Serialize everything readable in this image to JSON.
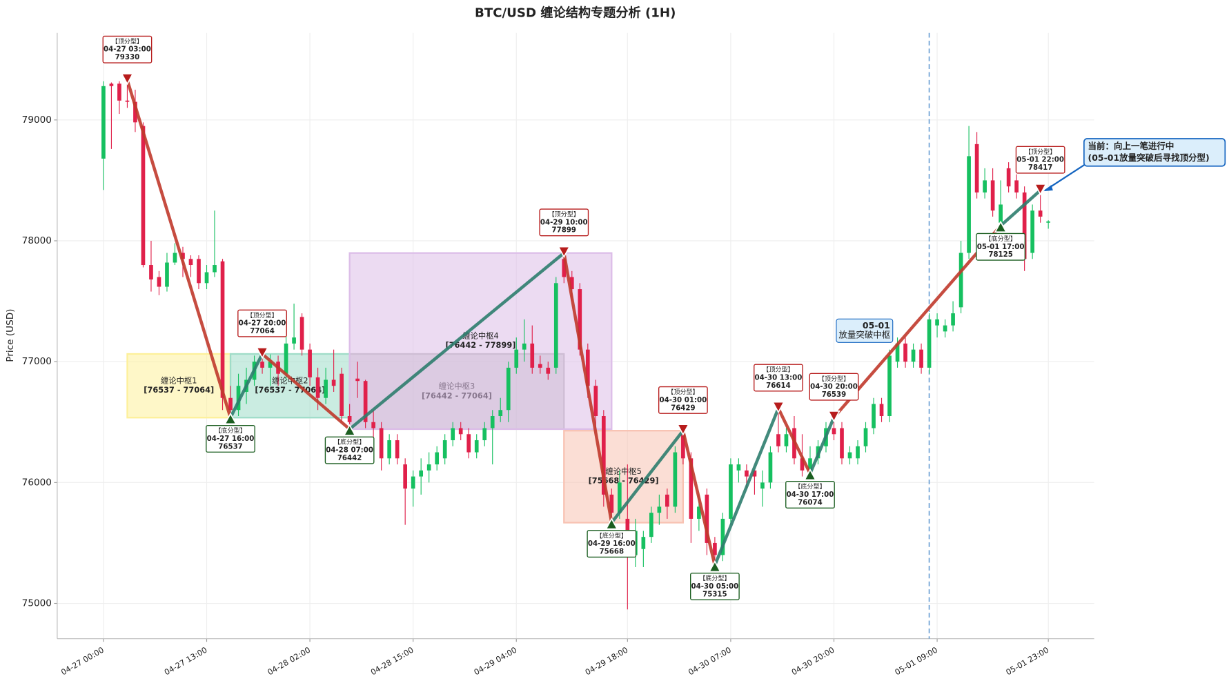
{
  "chart_data": {
    "type": "candlestick",
    "title": "BTC/USD 缠论结构专题分析 (1H)",
    "ylabel": "Price (USD)",
    "ylim": [
      74708,
      79720
    ],
    "yticks": [
      75000,
      76000,
      77000,
      78000,
      79000
    ],
    "grid": true,
    "up_color": "#16c060",
    "down_color": "#e0204a",
    "x": [
      "04-27 00:00",
      "04-27 01:00",
      "04-27 02:00",
      "04-27 03:00",
      "04-27 04:00",
      "04-27 05:00",
      "04-27 06:00",
      "04-27 07:00",
      "04-27 08:00",
      "04-27 09:00",
      "04-27 10:00",
      "04-27 11:00",
      "04-27 12:00",
      "04-27 13:00",
      "04-27 14:00",
      "04-27 15:00",
      "04-27 16:00",
      "04-27 17:00",
      "04-27 18:00",
      "04-27 19:00",
      "04-27 20:00",
      "04-27 21:00",
      "04-27 22:00",
      "04-27 23:00",
      "04-28 00:00",
      "04-28 01:00",
      "04-28 02:00",
      "04-28 03:00",
      "04-28 04:00",
      "04-28 05:00",
      "04-28 06:00",
      "04-28 07:00",
      "04-28 08:00",
      "04-28 09:00",
      "04-28 10:00",
      "04-28 11:00",
      "04-28 12:00",
      "04-28 13:00",
      "04-28 14:00",
      "04-28 15:00",
      "04-28 16:00",
      "04-28 17:00",
      "04-28 18:00",
      "04-28 19:00",
      "04-28 20:00",
      "04-28 21:00",
      "04-28 22:00",
      "04-28 23:00",
      "04-29 00:00",
      "04-29 01:00",
      "04-29 02:00",
      "04-29 03:00",
      "04-29 04:00",
      "04-29 05:00",
      "04-29 06:00",
      "04-29 07:00",
      "04-29 08:00",
      "04-29 09:00",
      "04-29 10:00",
      "04-29 11:00",
      "04-29 12:00",
      "04-29 13:00",
      "04-29 14:00",
      "04-29 15:00",
      "04-29 16:00",
      "04-29 17:00",
      "04-29 18:00",
      "04-29 19:00",
      "04-29 20:00",
      "04-29 21:00",
      "04-29 22:00",
      "04-29 23:00",
      "04-30 00:00",
      "04-30 01:00",
      "04-30 02:00",
      "04-30 03:00",
      "04-30 04:00",
      "04-30 05:00",
      "04-30 06:00",
      "04-30 07:00",
      "04-30 08:00",
      "04-30 09:00",
      "04-30 10:00",
      "04-30 11:00",
      "04-30 12:00",
      "04-30 13:00",
      "04-30 14:00",
      "04-30 15:00",
      "04-30 16:00",
      "04-30 17:00",
      "04-30 18:00",
      "04-30 19:00",
      "04-30 20:00",
      "04-30 21:00",
      "04-30 22:00",
      "04-30 23:00",
      "05-01 00:00",
      "05-01 01:00",
      "05-01 02:00",
      "05-01 03:00",
      "05-01 04:00",
      "05-01 05:00",
      "05-01 06:00",
      "05-01 07:00",
      "05-01 08:00",
      "05-01 09:00",
      "05-01 10:00",
      "05-01 11:00",
      "05-01 12:00",
      "05-01 13:00",
      "05-01 14:00",
      "05-01 15:00",
      "05-01 16:00",
      "05-01 17:00",
      "05-01 18:00",
      "05-01 19:00",
      "05-01 20:00",
      "05-01 21:00",
      "05-01 22:00",
      "05-01 23:00"
    ],
    "open": [
      78680,
      79300,
      79300,
      79160,
      79150,
      78950,
      77800,
      77700,
      77620,
      77820,
      77900,
      77850,
      77850,
      77650,
      77740,
      77830,
      76700,
      76600,
      76750,
      76850,
      77000,
      76950,
      77000,
      76900,
      77150,
      77370,
      77100,
      76870,
      76700,
      76850,
      76900,
      76550,
      76860,
      76840,
      76500,
      76450,
      76200,
      76350,
      76150,
      75950,
      76050,
      76100,
      76150,
      76200,
      76350,
      76450,
      76400,
      76250,
      76350,
      76450,
      76550,
      76600,
      76950,
      77100,
      77150,
      76980,
      76950,
      76950,
      77850,
      77700,
      77600,
      77100,
      76800,
      76550,
      75900,
      75750,
      75700,
      75400,
      75450,
      75550,
      75750,
      75900,
      75800,
      76400,
      76200,
      75700,
      75900,
      75500,
      75400,
      75700,
      76100,
      76100,
      76100,
      75950,
      76000,
      76400,
      76300,
      76450,
      76200,
      76100,
      76200,
      76300,
      76450,
      76450,
      76200,
      76200,
      76300,
      76450,
      76650,
      76550,
      77000,
      77150,
      77000,
      77100,
      76950,
      77300,
      77250,
      77300,
      77450,
      77900,
      78800,
      78400,
      78500,
      78150,
      78600,
      78500,
      78400,
      77900,
      78250,
      78150
    ],
    "high": [
      79320,
      79310,
      79320,
      79330,
      79250,
      78980,
      78000,
      77750,
      77900,
      77980,
      77950,
      77880,
      77880,
      77800,
      78250,
      77850,
      76800,
      76900,
      76950,
      77050,
      77064,
      77060,
      77050,
      77250,
      77480,
      77400,
      77150,
      76950,
      76950,
      77100,
      76950,
      76650,
      77000,
      76850,
      76600,
      76500,
      76400,
      76400,
      76200,
      76100,
      76200,
      76250,
      76300,
      76400,
      76500,
      76500,
      76450,
      76400,
      76500,
      76600,
      76700,
      77000,
      77200,
      77350,
      77300,
      77050,
      77000,
      77700,
      77899,
      77750,
      77650,
      77150,
      76850,
      76600,
      75950,
      76100,
      76150,
      75700,
      75600,
      75800,
      75900,
      75950,
      76300,
      76429,
      76250,
      75900,
      75950,
      75550,
      75750,
      76200,
      76200,
      76150,
      76100,
      76100,
      76300,
      76614,
      76450,
      76550,
      76400,
      76300,
      76350,
      76500,
      76539,
      76500,
      76300,
      76350,
      76500,
      76700,
      76700,
      77100,
      77200,
      77200,
      77150,
      77150,
      77400,
      77400,
      77350,
      77500,
      78000,
      78950,
      78900,
      78600,
      78600,
      78500,
      78650,
      78550,
      78450,
      78300,
      78417,
      78170
    ],
    "low": [
      78420,
      78760,
      79050,
      79100,
      78900,
      77780,
      77580,
      77550,
      77580,
      77800,
      77700,
      77700,
      77600,
      77600,
      77700,
      76600,
      76537,
      76550,
      76650,
      76800,
      76900,
      76800,
      76800,
      76850,
      77100,
      77050,
      76800,
      76600,
      76650,
      76750,
      76500,
      76442,
      76700,
      76450,
      76350,
      76100,
      76150,
      76150,
      75650,
      75800,
      75900,
      76000,
      76100,
      76150,
      76300,
      76350,
      76200,
      76200,
      76300,
      76150,
      76500,
      76500,
      76900,
      77000,
      76900,
      76900,
      76850,
      76900,
      77650,
      77500,
      77050,
      76700,
      76450,
      75800,
      75668,
      75700,
      74950,
      75300,
      75300,
      75500,
      75650,
      75700,
      75750,
      76150,
      75500,
      75600,
      75400,
      75315,
      75350,
      75650,
      76000,
      75950,
      75900,
      75800,
      75950,
      76250,
      76250,
      76150,
      76050,
      76074,
      76150,
      76250,
      76350,
      76150,
      76150,
      76150,
      76250,
      76400,
      76500,
      76500,
      76950,
      76950,
      76950,
      76900,
      76900,
      77200,
      77200,
      77250,
      77400,
      77850,
      78350,
      78350,
      78200,
      78125,
      78400,
      78350,
      77750,
      77850,
      78150,
      78100
    ],
    "close": [
      79280,
      79280,
      79160,
      79150,
      78980,
      77800,
      77680,
      77620,
      77820,
      77900,
      77850,
      77800,
      77650,
      77740,
      77800,
      76700,
      76600,
      76800,
      76850,
      77000,
      76950,
      77000,
      76900,
      77150,
      77200,
      77100,
      76870,
      76700,
      76850,
      76800,
      76550,
      76500,
      76840,
      76500,
      76450,
      76200,
      76350,
      76200,
      75950,
      76050,
      76100,
      76150,
      76250,
      76350,
      76450,
      76400,
      76250,
      76350,
      76450,
      76550,
      76600,
      76950,
      77100,
      77150,
      76950,
      76950,
      76900,
      77650,
      77700,
      77600,
      77100,
      76800,
      76550,
      75900,
      75750,
      76000,
      75450,
      75600,
      75550,
      75750,
      75800,
      75800,
      76250,
      76200,
      75700,
      75800,
      75500,
      75400,
      75700,
      76150,
      76150,
      76050,
      76050,
      76000,
      76250,
      76300,
      76400,
      76200,
      76100,
      76200,
      76300,
      76450,
      76400,
      76200,
      76250,
      76300,
      76450,
      76650,
      76550,
      77050,
      77150,
      77000,
      77100,
      76950,
      77350,
      77350,
      77300,
      77400,
      77900,
      78700,
      78400,
      78500,
      78250,
      78300,
      78450,
      78400,
      77850,
      78250,
      78200,
      78160
    ],
    "xticks": [
      "04-27 00:00",
      "04-27 13:00",
      "04-28 02:00",
      "04-28 15:00",
      "04-29 04:00",
      "04-29 18:00",
      "04-30 07:00",
      "04-30 20:00",
      "05-01 09:00",
      "05-01 23:00"
    ],
    "zhongshu": [
      {
        "name": "缠论中枢1",
        "range": "[76537 - 77064]",
        "low": 76537,
        "high": 77064,
        "start": "04-27 03:00",
        "end": "04-27 16:00",
        "color": "#fdf09a"
      },
      {
        "name": "缠论中枢2",
        "range": "[76537 - 77064]",
        "low": 76537,
        "high": 77064,
        "start": "04-27 16:00",
        "end": "04-28 07:00",
        "color": "#9fdcc8"
      },
      {
        "name": "缠论中枢3",
        "range": "[76442 - 77064]",
        "low": 76442,
        "high": 77064,
        "start": "04-28 07:00",
        "end": "04-29 10:00",
        "color": "#bdbdbd"
      },
      {
        "name": "缠论中枢4",
        "range": "[76442 - 77899]",
        "low": 76442,
        "high": 77899,
        "start": "04-28 07:00",
        "end": "04-29 16:00",
        "color": "#dcbde8"
      },
      {
        "name": "缠论中枢5",
        "range": "[75668 - 76429]",
        "low": 75668,
        "high": 76429,
        "start": "04-29 10:00",
        "end": "04-30 01:00",
        "color": "#f8c2b2"
      }
    ],
    "fenxing": [
      {
        "label": "【顶分型】",
        "time": "04-27 03:00",
        "price": 79330,
        "kind": "top"
      },
      {
        "label": "【底分型】",
        "time": "04-27 16:00",
        "price": 76537,
        "kind": "bottom"
      },
      {
        "label": "【顶分型】",
        "time": "04-27 20:00",
        "price": 77064,
        "kind": "top"
      },
      {
        "label": "【底分型】",
        "time": "04-28 07:00",
        "price": 76442,
        "kind": "bottom"
      },
      {
        "label": "【顶分型】",
        "time": "04-29 10:00",
        "price": 77899,
        "kind": "top"
      },
      {
        "label": "【底分型】",
        "time": "04-29 16:00",
        "price": 75668,
        "kind": "bottom"
      },
      {
        "label": "【顶分型】",
        "time": "04-30 01:00",
        "price": 76429,
        "kind": "top"
      },
      {
        "label": "【底分型】",
        "time": "04-30 05:00",
        "price": 75315,
        "kind": "bottom"
      },
      {
        "label": "【顶分型】",
        "time": "04-30 13:00",
        "price": 76614,
        "kind": "top"
      },
      {
        "label": "【底分型】",
        "time": "04-30 17:00",
        "price": 76074,
        "kind": "bottom"
      },
      {
        "label": "【顶分型】",
        "time": "04-30 20:00",
        "price": 76539,
        "kind": "top"
      },
      {
        "label": "【底分型】",
        "time": "05-01 17:00",
        "price": 78125,
        "kind": "bottom"
      },
      {
        "label": "【顶分型】",
        "time": "05-01 22:00",
        "price": 78417,
        "kind": "top"
      }
    ],
    "stroke_colors": [
      "#c0392b",
      "#2e7d6e"
    ],
    "breakout_time": "05-01 08:00",
    "breakout_note": [
      "05-01",
      "放量突破中枢"
    ],
    "current_note": [
      "当前：向上一笔进行中",
      "(05-01放量突破后寻找顶分型)"
    ]
  }
}
